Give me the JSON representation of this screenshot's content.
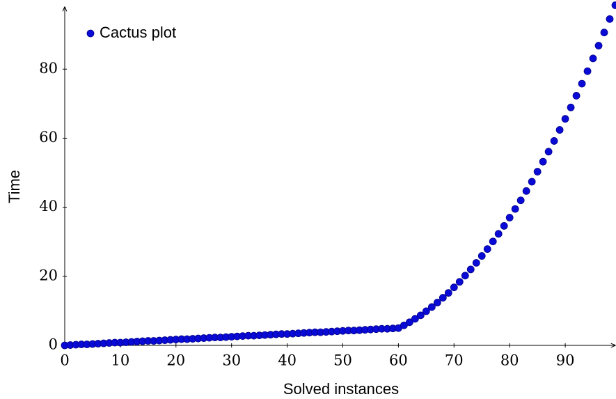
{
  "chart_data": {
    "type": "scatter",
    "x_label": "Solved instances",
    "y_label": "Time",
    "legend": "top-left",
    "series": [
      {
        "name": "Cactus plot",
        "color": "#0a0ad6",
        "x": [
          0,
          1,
          2,
          3,
          4,
          5,
          6,
          7,
          8,
          9,
          10,
          11,
          12,
          13,
          14,
          15,
          16,
          17,
          18,
          19,
          20,
          21,
          22,
          23,
          24,
          25,
          26,
          27,
          28,
          29,
          30,
          31,
          32,
          33,
          34,
          35,
          36,
          37,
          38,
          39,
          40,
          41,
          42,
          43,
          44,
          45,
          46,
          47,
          48,
          49,
          50,
          51,
          52,
          53,
          54,
          55,
          56,
          57,
          58,
          59,
          60,
          61,
          62,
          63,
          64,
          65,
          66,
          67,
          68,
          69,
          70,
          71,
          72,
          73,
          74,
          75,
          76,
          77,
          78,
          79,
          80,
          81,
          82,
          83,
          84,
          85,
          86,
          87,
          88,
          89,
          90,
          91,
          92,
          93,
          94,
          95,
          96,
          97,
          98,
          99
        ],
        "values": [
          0,
          0.1,
          0.2,
          0.3,
          0.3,
          0.4,
          0.5,
          0.6,
          0.7,
          0.8,
          0.8,
          0.9,
          1.0,
          1.1,
          1.2,
          1.3,
          1.3,
          1.4,
          1.5,
          1.6,
          1.7,
          1.8,
          1.8,
          1.9,
          2.0,
          2.1,
          2.2,
          2.3,
          2.3,
          2.4,
          2.5,
          2.6,
          2.7,
          2.8,
          2.8,
          2.9,
          3.0,
          3.1,
          3.2,
          3.3,
          3.3,
          3.4,
          3.5,
          3.6,
          3.7,
          3.8,
          3.8,
          3.9,
          4.0,
          4.1,
          4.2,
          4.3,
          4.3,
          4.4,
          4.5,
          4.6,
          4.7,
          4.8,
          4.8,
          4.9,
          5.0,
          5.8,
          6.7,
          7.7,
          8.7,
          9.9,
          11.1,
          12.4,
          13.8,
          15.2,
          16.8,
          18.4,
          20.2,
          22.0,
          23.9,
          25.9,
          27.9,
          30.1,
          32.3,
          34.6,
          37.0,
          39.5,
          42.0,
          44.7,
          47.4,
          50.3,
          53.2,
          56.1,
          59.2,
          62.4,
          65.6,
          68.9,
          72.3,
          75.8,
          79.4,
          83.1,
          86.8,
          90.6,
          94.5,
          98.5
        ]
      }
    ],
    "xlim": [
      0,
      99
    ],
    "ylim": [
      0,
      98
    ],
    "xticks": [
      0,
      10,
      20,
      30,
      40,
      50,
      60,
      70,
      80,
      90
    ],
    "yticks": [
      0,
      20,
      40,
      60,
      80
    ]
  }
}
